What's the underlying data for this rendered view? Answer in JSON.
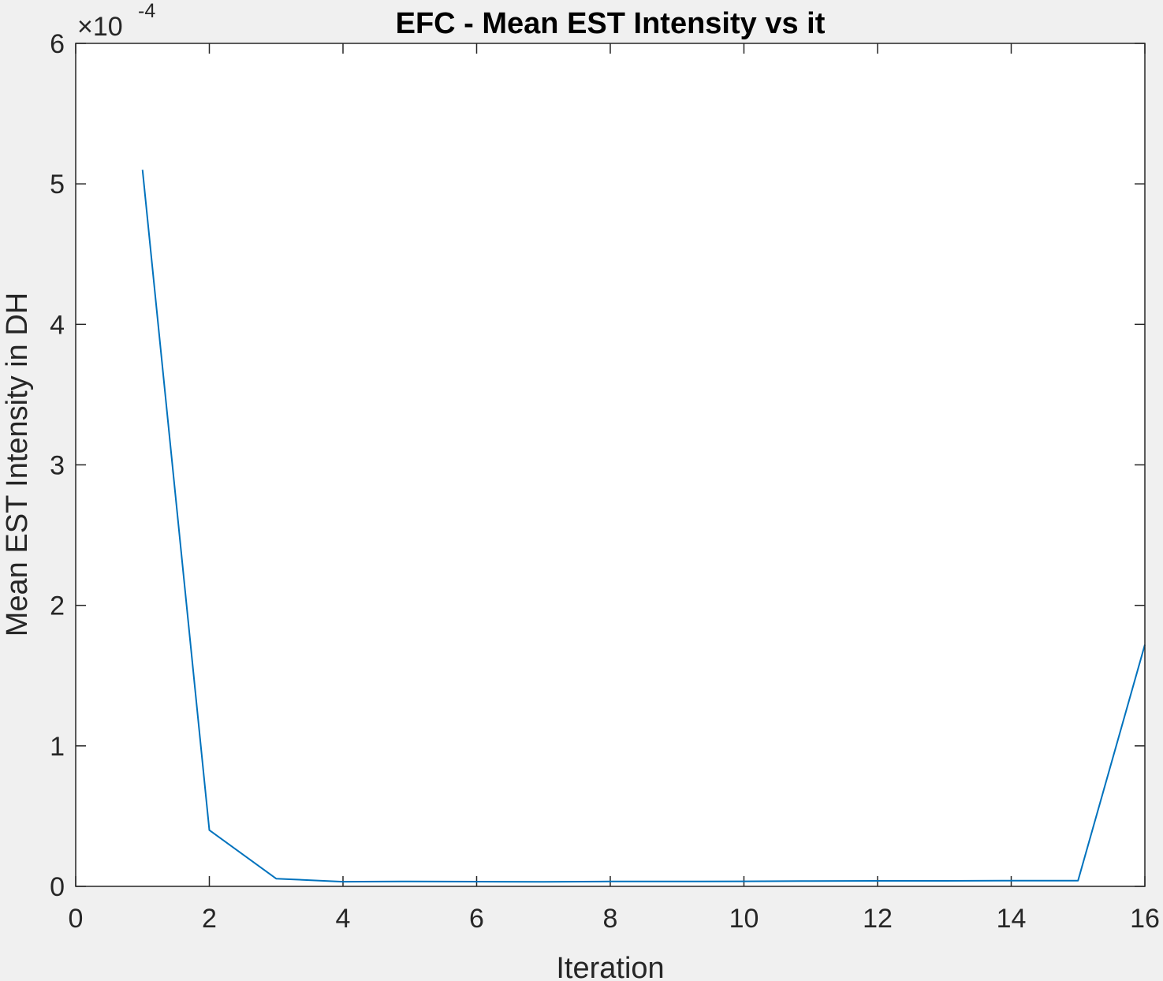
{
  "chart_data": {
    "type": "line",
    "title": "EFC - Mean EST Intensity vs it",
    "xlabel": "Iteration",
    "ylabel": "Mean EST Intensity in DH",
    "xlim": [
      0,
      16
    ],
    "ylim": [
      0,
      6
    ],
    "y_multiplier": {
      "times": "×10",
      "exponent": "-4"
    },
    "x_ticks": [
      0,
      2,
      4,
      6,
      8,
      10,
      12,
      14,
      16
    ],
    "y_ticks": [
      0,
      1,
      2,
      3,
      4,
      5,
      6
    ],
    "grid": false,
    "series": [
      {
        "color": "#0072bd",
        "x": [
          1,
          2,
          3,
          4,
          5,
          6,
          7,
          8,
          9,
          10,
          11,
          12,
          13,
          14,
          15,
          16
        ],
        "y": [
          5.1,
          0.4,
          0.055,
          0.033,
          0.035,
          0.034,
          0.032,
          0.035,
          0.035,
          0.036,
          0.038,
          0.039,
          0.039,
          0.041,
          0.041,
          1.72
        ]
      }
    ]
  },
  "style": {
    "axes_color": "#262626",
    "plot_background": "#ffffff",
    "figure_background": "#f0f0f0"
  }
}
